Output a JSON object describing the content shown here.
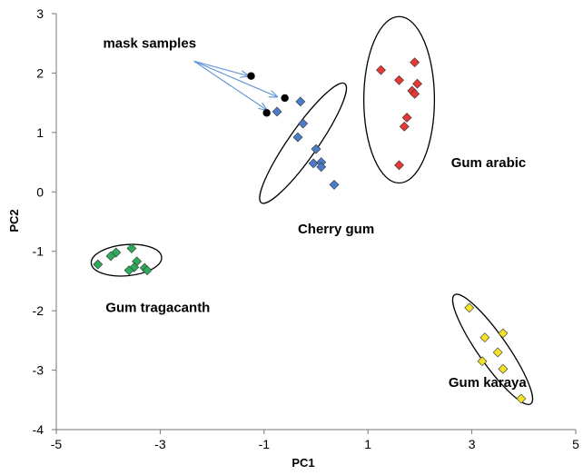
{
  "chart_data": {
    "type": "scatter",
    "title": "",
    "xlabel": "PC1",
    "ylabel": "PC2",
    "xlim": [
      -5,
      5
    ],
    "ylim": [
      -4,
      3
    ],
    "xticks": [
      -5,
      -3,
      -1,
      1,
      3,
      5
    ],
    "yticks": [
      -4,
      -3,
      -2,
      -1,
      0,
      1,
      2,
      3
    ],
    "grid": false,
    "series": [
      {
        "marker": "diamond",
        "color": "#e53935",
        "points": [
          [
            1.25,
            2.05
          ],
          [
            1.9,
            2.18
          ],
          [
            1.6,
            1.88
          ],
          [
            1.95,
            1.82
          ],
          [
            1.85,
            1.7
          ],
          [
            1.9,
            1.65
          ],
          [
            1.75,
            1.25
          ],
          [
            1.7,
            1.1
          ],
          [
            1.6,
            0.45
          ]
        ]
      },
      {
        "marker": "diamond",
        "color": "#4a7cc7",
        "points": [
          [
            -0.3,
            1.52
          ],
          [
            -0.75,
            1.35
          ],
          [
            -0.25,
            1.15
          ],
          [
            -0.35,
            0.92
          ],
          [
            0.0,
            0.72
          ],
          [
            -0.05,
            0.48
          ],
          [
            0.1,
            0.5
          ],
          [
            0.1,
            0.42
          ],
          [
            0.35,
            0.12
          ]
        ]
      },
      {
        "marker": "diamond",
        "color": "#2eaa5c",
        "points": [
          [
            -3.85,
            -1.02
          ],
          [
            -3.95,
            -1.08
          ],
          [
            -3.55,
            -0.95
          ],
          [
            -4.2,
            -1.22
          ],
          [
            -3.45,
            -1.17
          ],
          [
            -3.5,
            -1.27
          ],
          [
            -3.3,
            -1.28
          ],
          [
            -3.25,
            -1.32
          ],
          [
            -3.6,
            -1.32
          ]
        ]
      },
      {
        "marker": "diamond",
        "color": "#f2e22a",
        "points": [
          [
            2.95,
            -1.95
          ],
          [
            3.6,
            -2.38
          ],
          [
            3.25,
            -2.45
          ],
          [
            3.5,
            -2.7
          ],
          [
            3.2,
            -2.85
          ],
          [
            3.6,
            -2.98
          ],
          [
            3.95,
            -3.48
          ]
        ]
      },
      {
        "marker": "circle",
        "color": "#000000",
        "points": [
          [
            -1.25,
            1.95
          ],
          [
            -0.6,
            1.58
          ],
          [
            -0.95,
            1.33
          ]
        ]
      }
    ],
    "ellipses": [
      {
        "cx": 1.6,
        "cy": 1.55,
        "rx": 0.68,
        "ry": 1.4,
        "angle": 0
      },
      {
        "cx": -0.25,
        "cy": 0.82,
        "rx": 1.4,
        "ry": 0.28,
        "angle": -55
      },
      {
        "cx": -3.65,
        "cy": -1.15,
        "rx": 0.68,
        "ry": 0.3,
        "angle": -5
      },
      {
        "cx": 3.4,
        "cy": -2.65,
        "rx": 1.28,
        "ry": 0.28,
        "angle": 55
      }
    ],
    "annotations": [
      {
        "text": "mask samples",
        "x": -4.1,
        "y": 2.43
      },
      {
        "text": "Gum arabic",
        "x": 2.6,
        "y": 0.42
      },
      {
        "text": "Cherry gum",
        "x": -0.35,
        "y": -0.7
      },
      {
        "text": "Gum tragacanth",
        "x": -4.05,
        "y": -2.02
      },
      {
        "text": "Gum karaya",
        "x": 2.55,
        "y": -3.28
      }
    ],
    "arrows": [
      {
        "from": [
          -2.35,
          2.2
        ],
        "to": [
          -1.3,
          1.95
        ]
      },
      {
        "from": [
          -2.35,
          2.2
        ],
        "to": [
          -0.75,
          1.6
        ]
      },
      {
        "from": [
          -2.35,
          2.2
        ],
        "to": [
          -0.95,
          1.38
        ]
      }
    ]
  }
}
